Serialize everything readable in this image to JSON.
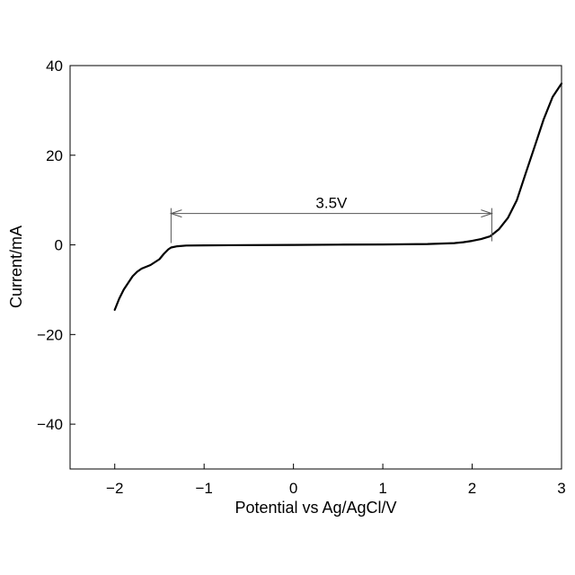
{
  "chart_data": {
    "type": "line",
    "title": "",
    "xlabel": "Potential vs Ag/AgCl/V",
    "ylabel": "Current/mA",
    "xlim": [
      -2.5,
      3
    ],
    "ylim": [
      -50,
      40
    ],
    "xticks": [
      -2,
      -1,
      0,
      1,
      2,
      3
    ],
    "yticks": [
      -40,
      -20,
      0,
      20,
      40
    ],
    "xtick_labels": [
      "−2",
      "−1",
      "0",
      "1",
      "2",
      "3"
    ],
    "ytick_labels": [
      "−40",
      "−20",
      "0",
      "20",
      "40"
    ],
    "grid": false,
    "legend": "none",
    "series": [
      {
        "color": "#000000",
        "x": [
          -2.0,
          -1.95,
          -1.9,
          -1.85,
          -1.8,
          -1.75,
          -1.7,
          -1.6,
          -1.5,
          -1.45,
          -1.4,
          -1.37,
          -1.3,
          -1.2,
          -1.0,
          -0.5,
          0.0,
          0.5,
          1.0,
          1.5,
          1.8,
          1.9,
          2.0,
          2.1,
          2.2,
          2.3,
          2.4,
          2.5,
          2.6,
          2.7,
          2.8,
          2.9,
          3.0
        ],
        "y": [
          -14.5,
          -12.0,
          -10.0,
          -8.5,
          -7.0,
          -6.0,
          -5.3,
          -4.5,
          -3.2,
          -2.0,
          -1.0,
          -0.6,
          -0.3,
          -0.15,
          -0.1,
          -0.05,
          0.0,
          0.05,
          0.1,
          0.2,
          0.4,
          0.6,
          0.9,
          1.3,
          1.9,
          3.5,
          6.0,
          10.0,
          16.0,
          22.0,
          28.0,
          33.0,
          36.0
        ]
      }
    ],
    "annotations": [
      {
        "text": "3.5V",
        "x_start": -1.37,
        "x_end": 2.22,
        "y": 7,
        "type": "double-arrow"
      }
    ]
  }
}
